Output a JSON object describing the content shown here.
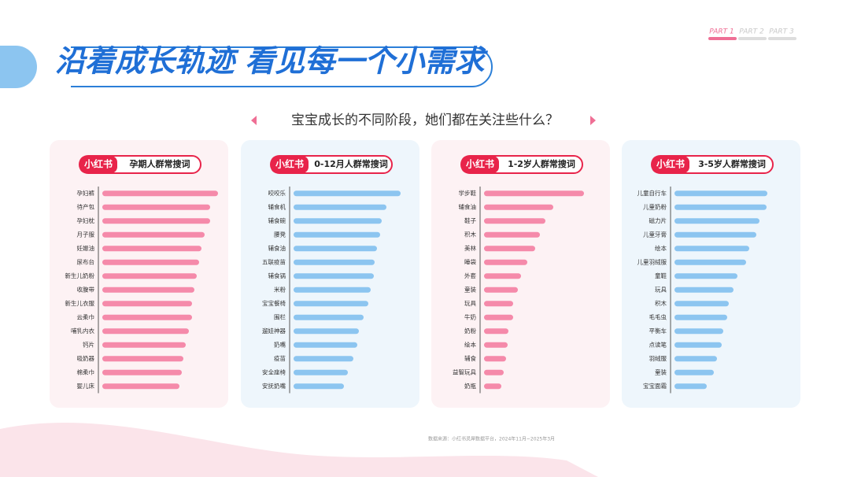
{
  "header": {
    "title": "沿着成长轨迹 看见每一个小需求",
    "subtitle": "宝宝成长的不同阶段，她们都在关注些什么？",
    "tabs": [
      "PART 1",
      "PART 2",
      "PART 3"
    ]
  },
  "chart_data": [
    {
      "type": "bar",
      "orientation": "horizontal",
      "badge": "小红书",
      "title": "孕期人群常搜词",
      "color": "#f58aaa",
      "card": "#fdf2f4",
      "xlim": [
        0,
        150
      ],
      "categories": [
        "孕妇裤",
        "待产包",
        "孕妇枕",
        "月子服",
        "妊娠油",
        "尿布台",
        "新生儿奶粉",
        "收腹带",
        "新生儿衣服",
        "云柔巾",
        "哺乳内衣",
        "钙片",
        "吸奶器",
        "棉柔巾",
        "婴儿床"
      ],
      "values": [
        147,
        137,
        137,
        130,
        126,
        123,
        120,
        117,
        114,
        114,
        110,
        106,
        103,
        101,
        98
      ]
    },
    {
      "type": "bar",
      "orientation": "horizontal",
      "badge": "小红书",
      "title": "0-12月人群常搜词",
      "color": "#8cc5f0",
      "card": "#eef6fc",
      "xlim": [
        0,
        150
      ],
      "categories": [
        "咬咬乐",
        "辅食机",
        "辅食碗",
        "腰凳",
        "辅食油",
        "五联疫苗",
        "辅食锅",
        "米粉",
        "宝宝餐椅",
        "围栏",
        "遛娃神器",
        "奶嘴",
        "疫苗",
        "安全座椅",
        "安抚奶嘴"
      ],
      "values": [
        136,
        118,
        112,
        110,
        106,
        103,
        102,
        98,
        95,
        89,
        83,
        81,
        76,
        69,
        64
      ]
    },
    {
      "type": "bar",
      "orientation": "horizontal",
      "badge": "小红书",
      "title": "1-2岁人群常搜词",
      "color": "#f58aaa",
      "card": "#fdf2f4",
      "xlim": [
        0,
        150
      ],
      "categories": [
        "学步鞋",
        "辅食油",
        "鞋子",
        "积木",
        "美林",
        "睡袋",
        "外套",
        "童装",
        "玩具",
        "牛奶",
        "奶粉",
        "绘本",
        "辅食",
        "益智玩具",
        "奶瓶"
      ],
      "values": [
        127,
        88,
        78,
        71,
        65,
        55,
        47,
        43,
        37,
        37,
        31,
        30,
        28,
        25,
        22
      ]
    },
    {
      "type": "bar",
      "orientation": "horizontal",
      "badge": "小红书",
      "title": "3-5岁人群常搜词",
      "color": "#8cc5f0",
      "card": "#eef6fc",
      "xlim": [
        0,
        150
      ],
      "categories": [
        "儿童自行车",
        "儿童奶粉",
        "磁力片",
        "儿童牙膏",
        "绘本",
        "儿童羽绒服",
        "童鞋",
        "玩具",
        "积木",
        "毛毛虫",
        "平衡车",
        "点读笔",
        "羽绒服",
        "童装",
        "宝宝面霜"
      ],
      "values": [
        118,
        117,
        108,
        104,
        95,
        91,
        80,
        75,
        69,
        67,
        62,
        60,
        54,
        50,
        41
      ]
    }
  ],
  "footer": {
    "source": "数据来源：小红书灵犀数据平台，2024年11月~2025年3月"
  }
}
